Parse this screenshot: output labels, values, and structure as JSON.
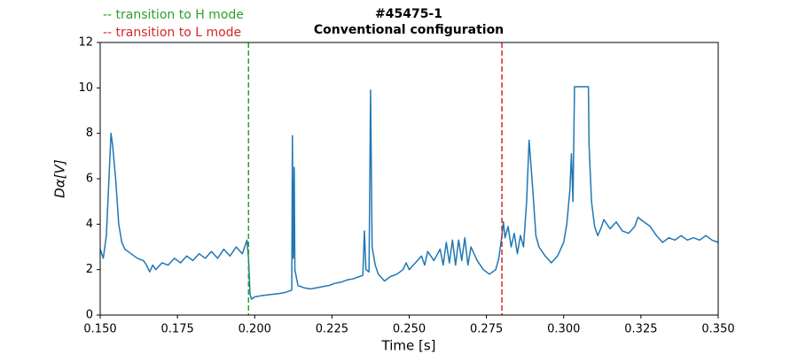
{
  "chart_data": {
    "type": "line",
    "title": "#45475-1",
    "subtitle": "Conventional configuration",
    "x_label": "Time [s]",
    "y_label": "Dα[V]",
    "xlim": [
      0.15,
      0.35
    ],
    "ylim": [
      0,
      12
    ],
    "xticks": [
      {
        "value": 0.15,
        "label": "0.150"
      },
      0.175,
      {
        "value": 0.2,
        "label": "0.200"
      },
      0.225,
      {
        "value": 0.25,
        "label": "0.250"
      },
      0.275,
      {
        "value": 0.3,
        "label": "0.300"
      },
      0.325,
      {
        "value": 0.35,
        "label": "0.350"
      }
    ],
    "yticks": [
      0,
      2,
      4,
      6,
      8,
      10,
      12
    ],
    "grid": false,
    "vlines": [
      {
        "x": 0.198,
        "color": "#2ca02c",
        "label": "-- transition to H mode"
      },
      {
        "x": 0.28,
        "color": "#d62728",
        "label": "-- transition to L mode"
      }
    ],
    "series": [
      {
        "color": "#1f77b4",
        "x": [
          0.15,
          0.151,
          0.152,
          0.153,
          0.1535,
          0.154,
          0.155,
          0.156,
          0.157,
          0.158,
          0.16,
          0.162,
          0.164,
          0.165,
          0.166,
          0.167,
          0.168,
          0.17,
          0.172,
          0.174,
          0.176,
          0.178,
          0.18,
          0.182,
          0.184,
          0.186,
          0.188,
          0.19,
          0.192,
          0.194,
          0.196,
          0.197,
          0.1975,
          0.198,
          0.1985,
          0.199,
          0.2,
          0.202,
          0.205,
          0.208,
          0.21,
          0.212,
          0.2122,
          0.2125,
          0.2128,
          0.213,
          0.214,
          0.216,
          0.218,
          0.22,
          0.222,
          0.224,
          0.226,
          0.228,
          0.23,
          0.232,
          0.234,
          0.235,
          0.2355,
          0.236,
          0.237,
          0.2375,
          0.238,
          0.239,
          0.24,
          0.242,
          0.244,
          0.246,
          0.248,
          0.249,
          0.25,
          0.252,
          0.254,
          0.255,
          0.256,
          0.258,
          0.26,
          0.261,
          0.262,
          0.263,
          0.264,
          0.265,
          0.266,
          0.267,
          0.268,
          0.269,
          0.27,
          0.272,
          0.274,
          0.276,
          0.278,
          0.279,
          0.28,
          0.2805,
          0.281,
          0.282,
          0.283,
          0.284,
          0.285,
          0.286,
          0.287,
          0.288,
          0.2888,
          0.29,
          0.291,
          0.292,
          0.294,
          0.296,
          0.298,
          0.3,
          0.301,
          0.302,
          0.3025,
          0.303,
          0.3035,
          0.308,
          0.3082,
          0.309,
          0.31,
          0.311,
          0.312,
          0.313,
          0.315,
          0.317,
          0.319,
          0.321,
          0.323,
          0.324,
          0.326,
          0.328,
          0.33,
          0.332,
          0.334,
          0.336,
          0.338,
          0.34,
          0.342,
          0.344,
          0.346,
          0.348,
          0.35
        ],
        "values": [
          2.9,
          2.5,
          3.5,
          6.5,
          8.0,
          7.5,
          6.0,
          4.0,
          3.2,
          2.9,
          2.7,
          2.5,
          2.4,
          2.2,
          1.9,
          2.2,
          2.0,
          2.3,
          2.2,
          2.5,
          2.3,
          2.6,
          2.4,
          2.7,
          2.5,
          2.8,
          2.5,
          2.9,
          2.6,
          3.0,
          2.7,
          3.1,
          3.3,
          2.5,
          0.9,
          0.7,
          0.8,
          0.85,
          0.9,
          0.95,
          1.0,
          1.1,
          7.9,
          2.5,
          6.5,
          2.0,
          1.3,
          1.2,
          1.15,
          1.2,
          1.25,
          1.3,
          1.4,
          1.45,
          1.55,
          1.6,
          1.7,
          1.75,
          3.7,
          2.0,
          1.9,
          9.9,
          3.0,
          2.2,
          1.8,
          1.5,
          1.7,
          1.8,
          2.0,
          2.3,
          2.0,
          2.3,
          2.6,
          2.2,
          2.8,
          2.4,
          2.9,
          2.2,
          3.2,
          2.3,
          3.3,
          2.2,
          3.3,
          2.4,
          3.4,
          2.2,
          3.0,
          2.4,
          2.0,
          1.8,
          2.0,
          2.5,
          3.5,
          4.1,
          3.4,
          3.9,
          3.0,
          3.6,
          2.7,
          3.5,
          3.0,
          5.0,
          7.7,
          5.5,
          3.5,
          3.0,
          2.6,
          2.3,
          2.6,
          3.2,
          4.0,
          5.5,
          7.1,
          5.0,
          10.05,
          10.05,
          7.5,
          5.0,
          3.9,
          3.5,
          3.8,
          4.2,
          3.8,
          4.1,
          3.7,
          3.6,
          3.9,
          4.3,
          4.1,
          3.9,
          3.5,
          3.2,
          3.4,
          3.3,
          3.5,
          3.3,
          3.4,
          3.3,
          3.5,
          3.3,
          3.2
        ]
      }
    ]
  }
}
